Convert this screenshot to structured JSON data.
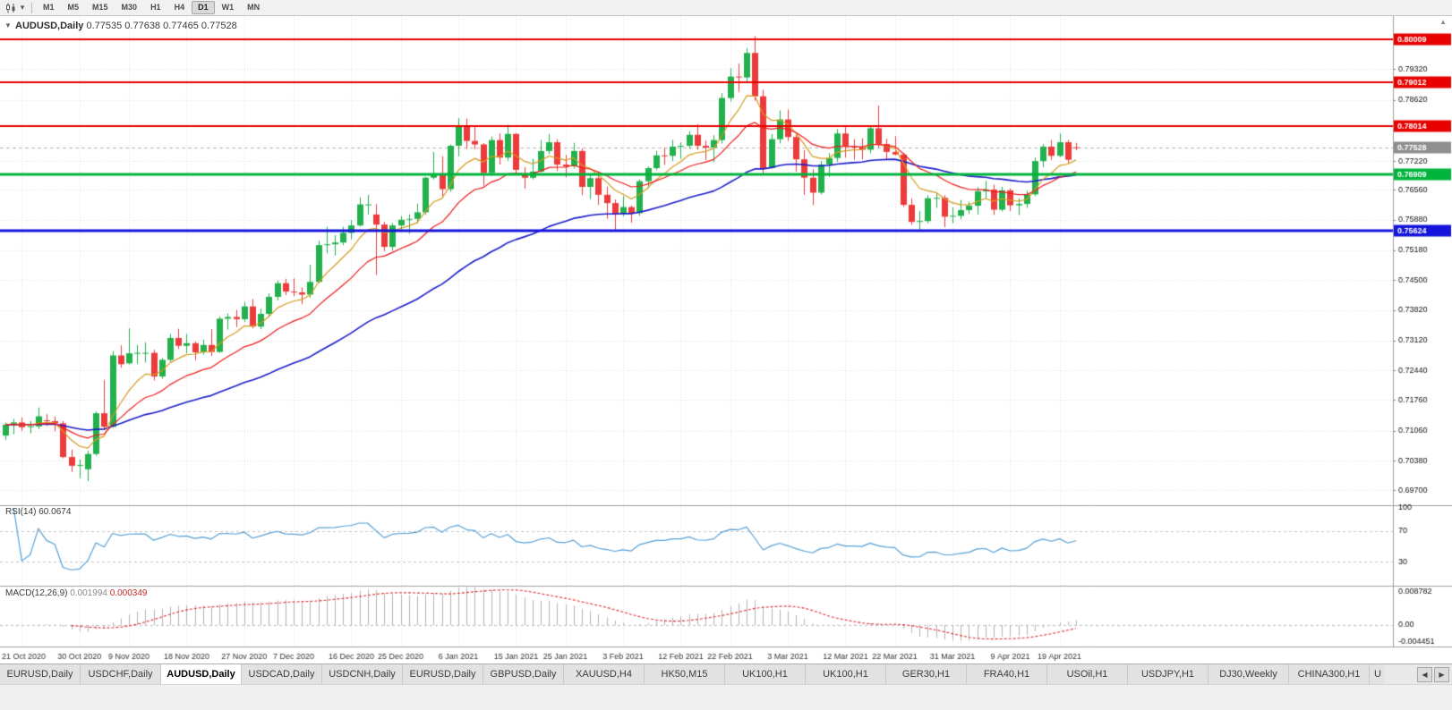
{
  "toolbar": {
    "timeframes": [
      {
        "label": "M1"
      },
      {
        "label": "M5"
      },
      {
        "label": "M15"
      },
      {
        "label": "M30"
      },
      {
        "label": "H1"
      },
      {
        "label": "H4"
      },
      {
        "label": "D1",
        "active": true
      },
      {
        "label": "W1"
      },
      {
        "label": "MN"
      }
    ],
    "icons": {
      "chart_type": "candlestick-chart",
      "dropdown_glyph": "▾"
    }
  },
  "chart": {
    "title_symbol": "AUDUSD,Daily",
    "title_ohlc": "0.77535 0.77638 0.77465 0.77528",
    "one_click_glyph": "▼",
    "shift_marker_glyph": "▲",
    "rsi_label_name": "RSI(14)",
    "rsi_label_value": "60.0674",
    "macd_label_name": "MACD(12,26,9)",
    "macd_label_value_main": "0.001994",
    "macd_label_value_signal": "0.000349"
  },
  "chart_data": {
    "type": "candlestick",
    "symbol": "AUDUSD",
    "timeframe": "Daily",
    "ohlc_fields": [
      "open",
      "high",
      "low",
      "close"
    ],
    "candles": [
      [
        0.7095,
        0.7125,
        0.7085,
        0.712
      ],
      [
        0.712,
        0.7133,
        0.7098,
        0.7125
      ],
      [
        0.7125,
        0.7136,
        0.7106,
        0.7114
      ],
      [
        0.7114,
        0.7128,
        0.71,
        0.7116
      ],
      [
        0.7116,
        0.7159,
        0.711,
        0.7139
      ],
      [
        0.713,
        0.7144,
        0.7117,
        0.7128
      ],
      [
        0.7128,
        0.7138,
        0.7105,
        0.7123
      ],
      [
        0.7123,
        0.7128,
        0.7043,
        0.7046
      ],
      [
        0.7046,
        0.7063,
        0.7012,
        0.7026
      ],
      [
        0.7026,
        0.704,
        0.6998,
        0.7028
      ],
      [
        0.7018,
        0.706,
        0.6991,
        0.7053
      ],
      [
        0.7053,
        0.715,
        0.7049,
        0.7146
      ],
      [
        0.7146,
        0.7222,
        0.7108,
        0.7115
      ],
      [
        0.7115,
        0.7288,
        0.7113,
        0.7278
      ],
      [
        0.7278,
        0.7301,
        0.725,
        0.7258
      ],
      [
        0.726,
        0.734,
        0.7258,
        0.7283
      ],
      [
        0.7283,
        0.7302,
        0.7259,
        0.7284
      ],
      [
        0.7284,
        0.7308,
        0.7262,
        0.7284
      ],
      [
        0.7284,
        0.7291,
        0.7221,
        0.723
      ],
      [
        0.723,
        0.7272,
        0.7225,
        0.7268
      ],
      [
        0.7268,
        0.7327,
        0.7264,
        0.7318
      ],
      [
        0.7318,
        0.7339,
        0.7293,
        0.73
      ],
      [
        0.73,
        0.7327,
        0.7283,
        0.7306
      ],
      [
        0.7306,
        0.731,
        0.7267,
        0.7285
      ],
      [
        0.7285,
        0.7314,
        0.728,
        0.7302
      ],
      [
        0.7302,
        0.7338,
        0.7277,
        0.7286
      ],
      [
        0.7286,
        0.7367,
        0.7284,
        0.7362
      ],
      [
        0.7362,
        0.7374,
        0.7337,
        0.7366
      ],
      [
        0.7366,
        0.7382,
        0.7343,
        0.7361
      ],
      [
        0.7361,
        0.74,
        0.7355,
        0.739
      ],
      [
        0.739,
        0.7407,
        0.734,
        0.7344
      ],
      [
        0.7344,
        0.7385,
        0.7338,
        0.7373
      ],
      [
        0.7373,
        0.742,
        0.7365,
        0.7412
      ],
      [
        0.7412,
        0.7449,
        0.7404,
        0.7443
      ],
      [
        0.7443,
        0.7453,
        0.7416,
        0.7424
      ],
      [
        0.7424,
        0.7454,
        0.7413,
        0.7422
      ],
      [
        0.7422,
        0.7433,
        0.7395,
        0.7417
      ],
      [
        0.7417,
        0.7485,
        0.741,
        0.7446
      ],
      [
        0.7446,
        0.754,
        0.7443,
        0.753
      ],
      [
        0.753,
        0.7572,
        0.7511,
        0.7532
      ],
      [
        0.7532,
        0.7553,
        0.7506,
        0.7536
      ],
      [
        0.7536,
        0.7572,
        0.753,
        0.7558
      ],
      [
        0.7558,
        0.7587,
        0.7543,
        0.7575
      ],
      [
        0.7575,
        0.7639,
        0.7572,
        0.7623
      ],
      [
        0.7623,
        0.7645,
        0.76,
        0.7623
      ],
      [
        0.76,
        0.7624,
        0.7462,
        0.7577
      ],
      [
        0.7577,
        0.7583,
        0.7516,
        0.7526
      ],
      [
        0.7526,
        0.758,
        0.7517,
        0.7575
      ],
      [
        0.7575,
        0.7596,
        0.756,
        0.7588
      ],
      [
        0.7588,
        0.76,
        0.7556,
        0.759
      ],
      [
        0.759,
        0.7625,
        0.758,
        0.7605
      ],
      [
        0.7605,
        0.7686,
        0.7599,
        0.7684
      ],
      [
        0.7684,
        0.7743,
        0.768,
        0.7694
      ],
      [
        0.7694,
        0.7733,
        0.7642,
        0.7658
      ],
      [
        0.7658,
        0.776,
        0.7652,
        0.7757
      ],
      [
        0.7757,
        0.782,
        0.7733,
        0.7804
      ],
      [
        0.7804,
        0.7819,
        0.775,
        0.7768
      ],
      [
        0.7768,
        0.78,
        0.7749,
        0.776
      ],
      [
        0.776,
        0.7763,
        0.7666,
        0.7695
      ],
      [
        0.7695,
        0.7778,
        0.7689,
        0.777
      ],
      [
        0.777,
        0.7785,
        0.7714,
        0.773
      ],
      [
        0.773,
        0.7805,
        0.7723,
        0.7784
      ],
      [
        0.7784,
        0.7786,
        0.7694,
        0.7702
      ],
      [
        0.7692,
        0.7708,
        0.7659,
        0.7684
      ],
      [
        0.7684,
        0.7727,
        0.768,
        0.7698
      ],
      [
        0.7698,
        0.777,
        0.7696,
        0.7745
      ],
      [
        0.7745,
        0.7784,
        0.7738,
        0.7765
      ],
      [
        0.7765,
        0.7772,
        0.77,
        0.7714
      ],
      [
        0.7714,
        0.7736,
        0.7685,
        0.771
      ],
      [
        0.771,
        0.7764,
        0.7705,
        0.7745
      ],
      [
        0.7745,
        0.7751,
        0.7644,
        0.7663
      ],
      [
        0.7663,
        0.7694,
        0.7635,
        0.7683
      ],
      [
        0.7683,
        0.7697,
        0.7622,
        0.7645
      ],
      [
        0.7645,
        0.7663,
        0.759,
        0.7626
      ],
      [
        0.7626,
        0.7634,
        0.7564,
        0.7601
      ],
      [
        0.7601,
        0.7642,
        0.7596,
        0.7617
      ],
      [
        0.7617,
        0.762,
        0.7581,
        0.7603
      ],
      [
        0.7603,
        0.768,
        0.7597,
        0.7676
      ],
      [
        0.7676,
        0.771,
        0.766,
        0.7706
      ],
      [
        0.7706,
        0.7745,
        0.7701,
        0.7735
      ],
      [
        0.7735,
        0.7752,
        0.7713,
        0.7734
      ],
      [
        0.7734,
        0.777,
        0.7722,
        0.7755
      ],
      [
        0.7755,
        0.7765,
        0.7727,
        0.7757
      ],
      [
        0.7757,
        0.779,
        0.775,
        0.7782
      ],
      [
        0.7782,
        0.7806,
        0.7748,
        0.7757
      ],
      [
        0.7757,
        0.7769,
        0.7724,
        0.7753
      ],
      [
        0.7753,
        0.7781,
        0.772,
        0.777
      ],
      [
        0.777,
        0.7877,
        0.7762,
        0.7866
      ],
      [
        0.7866,
        0.7934,
        0.7858,
        0.7915
      ],
      [
        0.7915,
        0.7945,
        0.788,
        0.7913
      ],
      [
        0.7913,
        0.798,
        0.79,
        0.7969
      ],
      [
        0.7969,
        0.8007,
        0.786,
        0.787
      ],
      [
        0.787,
        0.7885,
        0.7692,
        0.7706
      ],
      [
        0.7706,
        0.7784,
        0.7705,
        0.7772
      ],
      [
        0.7772,
        0.7838,
        0.7762,
        0.7817
      ],
      [
        0.7817,
        0.784,
        0.7768,
        0.7777
      ],
      [
        0.7777,
        0.7783,
        0.7698,
        0.7726
      ],
      [
        0.7726,
        0.7747,
        0.7645,
        0.7684
      ],
      [
        0.7684,
        0.7703,
        0.7621,
        0.765
      ],
      [
        0.765,
        0.7722,
        0.7646,
        0.7714
      ],
      [
        0.7714,
        0.774,
        0.7686,
        0.7729
      ],
      [
        0.7729,
        0.7795,
        0.772,
        0.7785
      ],
      [
        0.7785,
        0.78,
        0.773,
        0.7755
      ],
      [
        0.7755,
        0.7772,
        0.7725,
        0.7754
      ],
      [
        0.7754,
        0.7774,
        0.7726,
        0.7748
      ],
      [
        0.7748,
        0.7802,
        0.774,
        0.7797
      ],
      [
        0.7797,
        0.7849,
        0.7753,
        0.7761
      ],
      [
        0.7761,
        0.7773,
        0.7724,
        0.7743
      ],
      [
        0.7743,
        0.7779,
        0.7735,
        0.7737
      ],
      [
        0.7737,
        0.7741,
        0.7617,
        0.7622
      ],
      [
        0.7622,
        0.7637,
        0.7577,
        0.7583
      ],
      [
        0.7583,
        0.7608,
        0.7562,
        0.7585
      ],
      [
        0.7585,
        0.7644,
        0.758,
        0.7637
      ],
      [
        0.7637,
        0.765,
        0.7615,
        0.7638
      ],
      [
        0.7638,
        0.7644,
        0.7571,
        0.7595
      ],
      [
        0.7595,
        0.7616,
        0.758,
        0.7597
      ],
      [
        0.7597,
        0.7633,
        0.7589,
        0.761
      ],
      [
        0.761,
        0.7629,
        0.7601,
        0.762
      ],
      [
        0.762,
        0.7662,
        0.76,
        0.7653
      ],
      [
        0.7653,
        0.7677,
        0.7637,
        0.7657
      ],
      [
        0.7657,
        0.7668,
        0.7599,
        0.7611
      ],
      [
        0.7611,
        0.7663,
        0.7607,
        0.7655
      ],
      [
        0.7655,
        0.7659,
        0.7608,
        0.7621
      ],
      [
        0.7621,
        0.7637,
        0.7599,
        0.7624
      ],
      [
        0.7624,
        0.7654,
        0.7615,
        0.7646
      ],
      [
        0.7646,
        0.773,
        0.7642,
        0.7722
      ],
      [
        0.7722,
        0.7761,
        0.7708,
        0.7755
      ],
      [
        0.7755,
        0.777,
        0.7725,
        0.7734
      ],
      [
        0.7734,
        0.7785,
        0.7731,
        0.7765
      ],
      [
        0.7765,
        0.777,
        0.7716,
        0.7725
      ],
      [
        0.77535,
        0.77638,
        0.77465,
        0.77528
      ]
    ],
    "x_labels": [
      {
        "t": "21 Oct 2020",
        "i": 2
      },
      {
        "t": "30 Oct 2020",
        "i": 9
      },
      {
        "t": "9 Nov 2020",
        "i": 15
      },
      {
        "t": "18 Nov 2020",
        "i": 22
      },
      {
        "t": "27 Nov 2020",
        "i": 29
      },
      {
        "t": "7 Dec 2020",
        "i": 35
      },
      {
        "t": "16 Dec 2020",
        "i": 42
      },
      {
        "t": "25 Dec 2020",
        "i": 48
      },
      {
        "t": "6 Jan 2021",
        "i": 55
      },
      {
        "t": "15 Jan 2021",
        "i": 62
      },
      {
        "t": "25 Jan 2021",
        "i": 68
      },
      {
        "t": "3 Feb 2021",
        "i": 75
      },
      {
        "t": "12 Feb 2021",
        "i": 82
      },
      {
        "t": "22 Feb 2021",
        "i": 88
      },
      {
        "t": "3 Mar 2021",
        "i": 95
      },
      {
        "t": "12 Mar 2021",
        "i": 102
      },
      {
        "t": "22 Mar 2021",
        "i": 108
      },
      {
        "t": "31 Mar 2021",
        "i": 115
      },
      {
        "t": "9 Apr 2021",
        "i": 122
      },
      {
        "t": "19 Apr 2021",
        "i": 128
      }
    ],
    "y_axis": {
      "min": 0.694,
      "max": 0.8045,
      "ticks": [
        "0.79320",
        "0.78620",
        "0.77220",
        "0.76560",
        "0.75880",
        "0.75180",
        "0.74500",
        "0.73820",
        "0.73120",
        "0.72440",
        "0.71760",
        "0.71060",
        "0.70380",
        "0.69700"
      ]
    },
    "horizontal_lines": [
      {
        "value": 0.80009,
        "label": "0.80009",
        "color": "#e80000",
        "width": 2
      },
      {
        "value": 0.79012,
        "label": "0.79012",
        "color": "#e80000",
        "width": 2
      },
      {
        "value": 0.78014,
        "label": "0.78014",
        "color": "#e80000",
        "width": 2
      },
      {
        "value": 0.76909,
        "label": "0.76909",
        "color": "#00b43c",
        "width": 3
      },
      {
        "value": 0.75624,
        "label": "0.75624",
        "color": "#1414dc",
        "width": 3
      }
    ],
    "current_price": {
      "value": 0.77528,
      "label": "0.77528",
      "color": "#8f8f8f"
    },
    "moving_averages": [
      {
        "name": "fast",
        "method": "ema",
        "period": 7,
        "color": "#d69b1e"
      },
      {
        "name": "medium",
        "method": "ema",
        "period": 16,
        "color": "#ee1c1c"
      },
      {
        "name": "slow",
        "method": "ema",
        "period": 45,
        "color": "#1c1ccc"
      }
    ],
    "indicators": {
      "rsi": {
        "period": 14,
        "current": 60.0674,
        "range": [
          0,
          100
        ],
        "levels": [
          70,
          30
        ],
        "axis_labels": [
          {
            "v": 100,
            "t": "100"
          },
          {
            "v": 70,
            "t": "70"
          },
          {
            "v": 30,
            "t": "30"
          }
        ],
        "color": "#55a0d8"
      },
      "macd": {
        "fast": 12,
        "slow": 26,
        "signal": 9,
        "current_main": 0.001994,
        "current_signal": 0.000349,
        "range": [
          -0.0052,
          0.0095
        ],
        "axis_labels": [
          {
            "v": 0.008782,
            "t": "0.008782"
          },
          {
            "v": 0,
            "t": "0.00"
          },
          {
            "v": -0.004451,
            "t": "-0.004451"
          }
        ],
        "histogram_color": "#b4b4b4",
        "signal_color": "#e03030"
      }
    },
    "colors": {
      "bull": "#22b14c",
      "bear": "#ed3b3b",
      "grid": "#dedede",
      "background": "#ffffff",
      "axis_text": "#111111",
      "date_text": "#333333"
    }
  },
  "tabs": {
    "items": [
      {
        "label": "EURUSD,Daily"
      },
      {
        "label": "USDCHF,Daily"
      },
      {
        "label": "AUDUSD,Daily",
        "active": true
      },
      {
        "label": "USDCAD,Daily"
      },
      {
        "label": "USDCNH,Daily"
      },
      {
        "label": "EURUSD,Daily"
      },
      {
        "label": "GBPUSD,Daily"
      },
      {
        "label": "XAUUSD,H4"
      },
      {
        "label": "HK50,M15"
      },
      {
        "label": "UK100,H1"
      },
      {
        "label": "UK100,H1"
      },
      {
        "label": "GER30,H1"
      },
      {
        "label": "FRA40,H1"
      },
      {
        "label": "USOil,H1"
      },
      {
        "label": "USDJPY,H1"
      },
      {
        "label": "DJ30,Weekly"
      },
      {
        "label": "CHINA300,H1"
      },
      {
        "label": "U",
        "partial": true
      }
    ],
    "scroll_left_glyph": "◀",
    "scroll_right_glyph": "▶"
  }
}
